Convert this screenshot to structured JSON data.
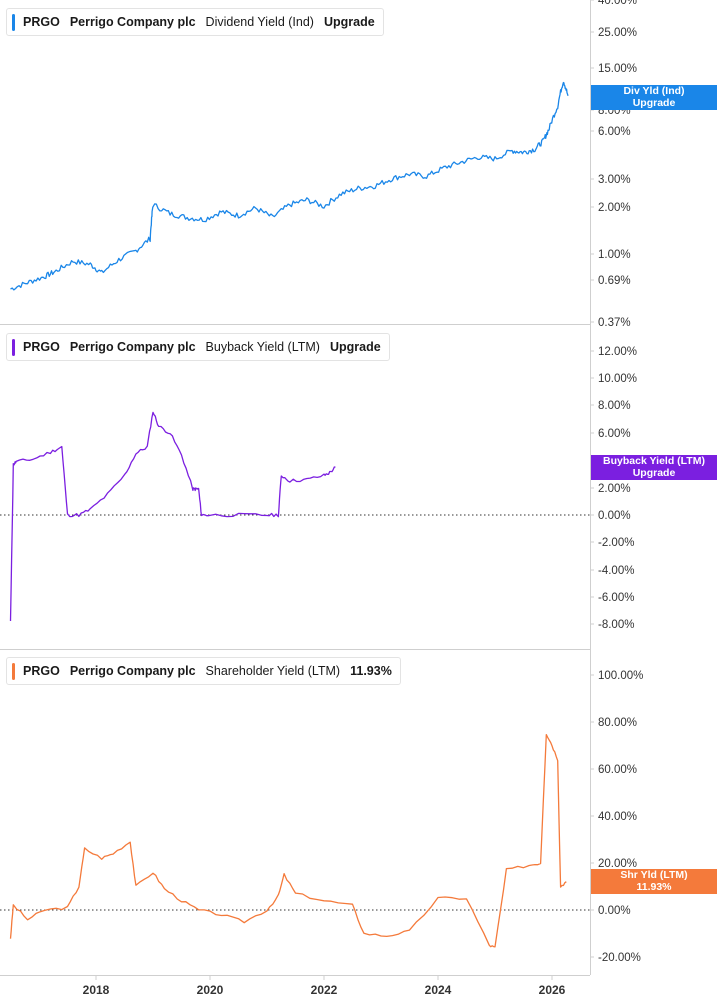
{
  "panels": [
    {
      "ticker": "PRGO",
      "company": "Perrigo Company plc",
      "metric": "Dividend Yield (Ind)",
      "value_label": "Upgrade",
      "color": "#1a86e8",
      "tag_line1": "Div Yld (Ind)",
      "tag_line2": "Upgrade",
      "scale": "log",
      "y_ticks": [
        "40.00%",
        "25.00%",
        "15.00%",
        "8.00%",
        "6.00%",
        "3.00%",
        "2.00%",
        "1.00%",
        "0.69%",
        "0.37%"
      ]
    },
    {
      "ticker": "PRGO",
      "company": "Perrigo Company plc",
      "metric": "Buyback Yield (LTM)",
      "value_label": "Upgrade",
      "color": "#7b1fe0",
      "tag_line1": "Buyback Yield (LTM)",
      "tag_line2": "Upgrade",
      "scale": "linear",
      "y_ticks": [
        "12.00%",
        "10.00%",
        "8.00%",
        "6.00%",
        "2.00%",
        "0.00%",
        "-2.00%",
        "-4.00%",
        "-6.00%",
        "-8.00%"
      ]
    },
    {
      "ticker": "PRGO",
      "company": "Perrigo Company plc",
      "metric": "Shareholder Yield (LTM)",
      "value_label": "11.93%",
      "color": "#f47a3b",
      "tag_line1": "Shr Yld (LTM)",
      "tag_line2": "11.93%",
      "scale": "linear",
      "y_ticks": [
        "100.00%",
        "80.00%",
        "60.00%",
        "40.00%",
        "20.00%",
        "0.00%",
        "-20.00%"
      ]
    }
  ],
  "x_ticks": [
    "2018",
    "2020",
    "2022",
    "2024",
    "2026"
  ],
  "chart_data": [
    {
      "type": "line",
      "title": "PRGO Perrigo Company plc Dividend Yield (Ind)",
      "y_scale": "log",
      "ylim": [
        0.37,
        40
      ],
      "series": [
        {
          "name": "Dividend Yield (Ind)",
          "x": [
            2016.5,
            2016.8,
            2017.1,
            2017.3,
            2017.6,
            2017.9,
            2018.1,
            2018.4,
            2018.7,
            2018.95,
            2019.0,
            2019.3,
            2019.6,
            2019.9,
            2020.2,
            2020.5,
            2020.8,
            2021.1,
            2021.4,
            2021.7,
            2022.0,
            2022.3,
            2022.6,
            2022.9,
            2023.2,
            2023.5,
            2023.8,
            2024.1,
            2024.4,
            2024.7,
            2025.0,
            2025.3,
            2025.5,
            2025.7,
            2025.85,
            2025.95,
            2026.1,
            2026.2,
            2026.28
          ],
          "values": [
            0.6,
            0.66,
            0.72,
            0.78,
            0.9,
            0.86,
            0.76,
            0.92,
            1.05,
            1.25,
            2.05,
            1.8,
            1.7,
            1.65,
            1.85,
            1.75,
            1.95,
            1.7,
            2.05,
            2.2,
            2.0,
            2.4,
            2.6,
            2.7,
            3.0,
            3.2,
            3.1,
            3.5,
            3.8,
            4.1,
            4.0,
            4.5,
            4.4,
            4.6,
            5.2,
            6.2,
            8.6,
            12.5,
            10.0
          ]
        }
      ]
    },
    {
      "type": "line",
      "title": "PRGO Perrigo Company plc Buyback Yield (LTM)",
      "y_scale": "linear",
      "ylim": [
        -8,
        12
      ],
      "series": [
        {
          "name": "Buyback Yield (LTM)",
          "x": [
            2016.5,
            2016.55,
            2016.6,
            2016.9,
            2017.2,
            2017.4,
            2017.5,
            2017.7,
            2017.9,
            2018.2,
            2018.5,
            2018.7,
            2018.9,
            2019.0,
            2019.1,
            2019.3,
            2019.5,
            2019.7,
            2019.75,
            2019.8,
            2019.85,
            2020.0,
            2020.5,
            2021.0,
            2021.2,
            2021.25,
            2021.4,
            2021.7,
            2022.0,
            2022.1,
            2022.2
          ],
          "values": [
            -7.8,
            3.7,
            3.9,
            4.1,
            4.6,
            5.0,
            0.0,
            0.0,
            0.4,
            1.5,
            2.9,
            4.5,
            5.0,
            7.6,
            6.5,
            6.0,
            4.4,
            1.9,
            1.9,
            1.9,
            0.0,
            0.0,
            0.0,
            0.0,
            0.0,
            2.9,
            2.5,
            2.6,
            2.9,
            3.1,
            3.5
          ]
        }
      ]
    },
    {
      "type": "line",
      "title": "PRGO Perrigo Company plc Shareholder Yield (LTM)",
      "y_scale": "linear",
      "ylim": [
        -25,
        105
      ],
      "series": [
        {
          "name": "Shareholder Yield (LTM)",
          "x": [
            2016.5,
            2016.55,
            2016.8,
            2017.1,
            2017.5,
            2017.7,
            2017.8,
            2018.1,
            2018.3,
            2018.6,
            2018.7,
            2019.0,
            2019.2,
            2019.5,
            2019.8,
            2020.2,
            2020.6,
            2021.0,
            2021.2,
            2021.3,
            2021.5,
            2022.0,
            2022.5,
            2022.7,
            2023.1,
            2023.5,
            2024.0,
            2024.5,
            2024.9,
            2025.0,
            2025.2,
            2025.6,
            2025.8,
            2025.9,
            2026.0,
            2026.1,
            2026.15,
            2026.25
          ],
          "values": [
            -12,
            2,
            -4,
            0,
            1,
            10,
            26,
            22,
            24,
            29,
            10,
            16,
            9,
            4,
            0,
            -2,
            -5,
            0,
            6,
            15,
            7,
            4,
            2,
            -10,
            -11,
            -9,
            5,
            5,
            -15,
            -16,
            17,
            19,
            20,
            75,
            70,
            64,
            10,
            12
          ]
        }
      ]
    }
  ]
}
